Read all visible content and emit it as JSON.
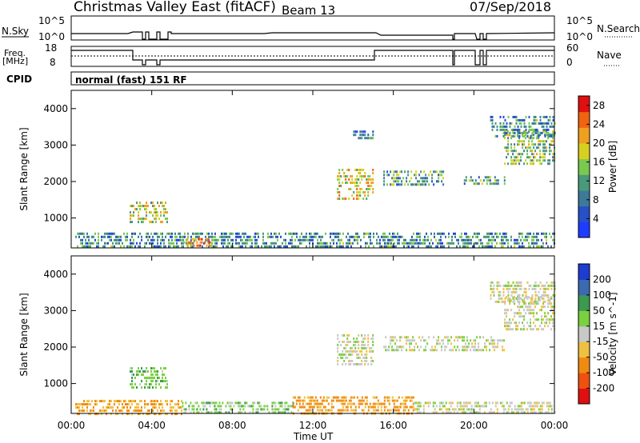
{
  "header": {
    "title": "Christmas Valley East (fitACF)",
    "beam": "Beam 13",
    "date": "07/Sep/2018"
  },
  "strips": {
    "nsky_label": "N.Sky",
    "nsky_ticks": [
      "10^5",
      "10^0"
    ],
    "nsearch_label": "N.Search",
    "nsearch_ticks": [
      "10^5",
      "10^0"
    ],
    "freq_label": "Freq.",
    "freq_unit": "[MHz]",
    "freq_ticks": [
      "18",
      "8"
    ],
    "nave_label": "Nave",
    "nave_ticks": [
      "60",
      "0"
    ],
    "cpid_label": "CPID",
    "cpid_value": "normal (fast) 151 RF"
  },
  "colors": {
    "power_scale": [
      "#1e3cff",
      "#2850c8",
      "#3c7a9a",
      "#4a9a7a",
      "#7ac850",
      "#d8d020",
      "#f0a020",
      "#f06410",
      "#e01010"
    ],
    "velocity_scale": [
      "#e01010",
      "#f05010",
      "#f08a10",
      "#f0c040",
      "#c8c8c8",
      "#7ad040",
      "#3c9a50",
      "#3c6ab0",
      "#1e3ccf"
    ]
  },
  "chart_data": [
    {
      "type": "heatmap",
      "name": "power",
      "ylabel": "Slant Range [km]",
      "xlabel": "",
      "x_ticks": [
        "00:00",
        "04:00",
        "08:00",
        "12:00",
        "16:00",
        "20:00",
        "00:00"
      ],
      "xlim_hours": [
        0,
        24
      ],
      "ylim_km": [
        180,
        4500
      ],
      "y_ticks": [
        "1000",
        "2000",
        "3000",
        "4000"
      ],
      "colorbar_label": "Power [dB]",
      "colorbar_ticks": [
        "4",
        "8",
        "12",
        "16",
        "20",
        "24",
        "28"
      ],
      "colorbar_range": [
        0,
        30
      ],
      "echo_regions": [
        {
          "t0": 0.2,
          "t1": 24,
          "r0": 180,
          "r1": 600,
          "v": 10
        },
        {
          "t0": 2.9,
          "t1": 4.8,
          "r0": 850,
          "r1": 1450,
          "v": 16
        },
        {
          "t0": 5.5,
          "t1": 7.0,
          "r0": 250,
          "r1": 450,
          "v": 22
        },
        {
          "t0": 13.2,
          "t1": 15.0,
          "r0": 1550,
          "r1": 2350,
          "v": 18
        },
        {
          "t0": 15.5,
          "t1": 18.5,
          "r0": 1900,
          "r1": 2300,
          "v": 12
        },
        {
          "t0": 19.5,
          "t1": 21.5,
          "r0": 1950,
          "r1": 2150,
          "v": 12
        },
        {
          "t0": 21.5,
          "t1": 24.0,
          "r0": 2500,
          "r1": 3400,
          "v": 14
        },
        {
          "t0": 20.8,
          "t1": 24.0,
          "r0": 3200,
          "r1": 3800,
          "v": 10
        },
        {
          "t0": 14.0,
          "t1": 15.0,
          "r0": 3200,
          "r1": 3400,
          "v": 8
        }
      ]
    },
    {
      "type": "heatmap",
      "name": "velocity",
      "ylabel": "Slant Range [km]",
      "xlabel": "Time UT",
      "x_ticks": [
        "00:00",
        "04:00",
        "08:00",
        "12:00",
        "16:00",
        "20:00",
        "00:00"
      ],
      "xlim_hours": [
        0,
        24
      ],
      "ylim_km": [
        180,
        4500
      ],
      "y_ticks": [
        "1000",
        "2000",
        "3000",
        "4000"
      ],
      "colorbar_label": "Velocity [m s^-1]",
      "colorbar_ticks": [
        "200",
        "100",
        "50",
        "15",
        "-15",
        "-50",
        "-100",
        "-200"
      ],
      "echo_regions": [
        {
          "t0": 0.2,
          "t1": 5.5,
          "r0": 180,
          "r1": 550,
          "v": -50
        },
        {
          "t0": 5.5,
          "t1": 11.0,
          "r0": 180,
          "r1": 500,
          "v": 30
        },
        {
          "t0": 11.0,
          "t1": 17.0,
          "r0": 180,
          "r1": 650,
          "v": -60
        },
        {
          "t0": 17.0,
          "t1": 24.0,
          "r0": 180,
          "r1": 500,
          "v": 0
        },
        {
          "t0": 2.9,
          "t1": 4.8,
          "r0": 850,
          "r1": 1450,
          "v": 40
        },
        {
          "t0": 13.2,
          "t1": 15.0,
          "r0": 1550,
          "r1": 2350,
          "v": 0
        },
        {
          "t0": 15.5,
          "t1": 21.5,
          "r0": 1900,
          "r1": 2300,
          "v": 0
        },
        {
          "t0": 21.5,
          "t1": 24.0,
          "r0": 2500,
          "r1": 3400,
          "v": 0
        },
        {
          "t0": 20.8,
          "t1": 24.0,
          "r0": 3200,
          "r1": 3800,
          "v": 0
        }
      ]
    }
  ]
}
